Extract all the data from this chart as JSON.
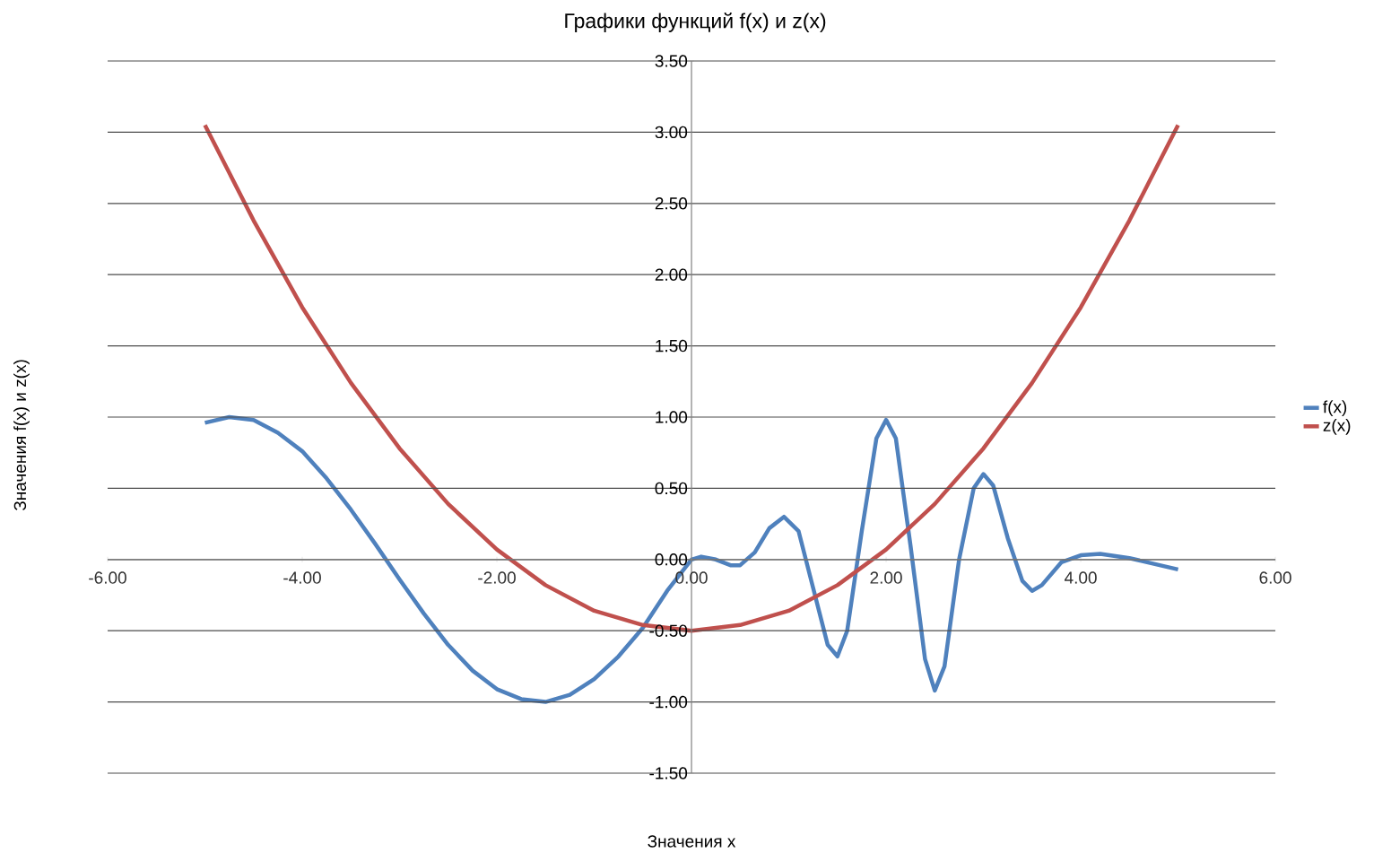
{
  "chart_data": {
    "type": "line",
    "title": "Графики функций f(x) и z(x)",
    "xlabel": "Значения x",
    "ylabel": "Значения f(x) и z(x)",
    "series": [
      {
        "name": "f(x)",
        "color": "#4f81bd",
        "x": [
          -5,
          -4.75,
          -4.5,
          -4.25,
          -4,
          -3.75,
          -3.5,
          -3.25,
          -3,
          -2.75,
          -2.5,
          -2.25,
          -2,
          -1.75,
          -1.5,
          -1.25,
          -1,
          -0.75,
          -0.5,
          -0.25,
          0,
          0.1,
          0.25,
          0.4,
          0.5,
          0.65,
          0.8,
          0.95,
          1.1,
          1.25,
          1.4,
          1.5,
          1.6,
          1.75,
          1.9,
          2.0,
          2.1,
          2.25,
          2.4,
          2.5,
          2.6,
          2.75,
          2.9,
          3.0,
          3.1,
          3.25,
          3.4,
          3.5,
          3.6,
          3.8,
          4.0,
          4.2,
          4.5,
          4.75,
          5
        ],
        "values": [
          0.96,
          1.0,
          0.98,
          0.89,
          0.76,
          0.57,
          0.35,
          0.11,
          -0.14,
          -0.38,
          -0.6,
          -0.78,
          -0.91,
          -0.98,
          -1.0,
          -0.95,
          -0.84,
          -0.68,
          -0.48,
          -0.22,
          0.0,
          0.02,
          0.0,
          -0.04,
          -0.04,
          0.05,
          0.22,
          0.3,
          0.2,
          -0.2,
          -0.6,
          -0.68,
          -0.5,
          0.2,
          0.85,
          0.98,
          0.85,
          0.1,
          -0.7,
          -0.92,
          -0.75,
          0.0,
          0.5,
          0.6,
          0.52,
          0.15,
          -0.15,
          -0.22,
          -0.18,
          -0.02,
          0.03,
          0.04,
          0.01,
          -0.03,
          -0.07
        ]
      },
      {
        "name": "z(x)",
        "color": "#c0504d",
        "x": [
          -5,
          -4.5,
          -4,
          -3.5,
          -3,
          -2.5,
          -2,
          -1.5,
          -1,
          -0.5,
          0,
          0.5,
          1,
          1.5,
          2,
          2.5,
          3,
          3.5,
          4,
          4.5,
          5
        ],
        "values": [
          3.05,
          2.38,
          1.77,
          1.24,
          0.78,
          0.39,
          0.07,
          -0.18,
          -0.36,
          -0.46,
          -0.5,
          -0.46,
          -0.36,
          -0.18,
          0.07,
          0.39,
          0.78,
          1.24,
          1.77,
          2.38,
          3.05
        ]
      }
    ],
    "xlim": [
      -6,
      6
    ],
    "ylim": [
      -1.5,
      3.5
    ],
    "xticks": [
      {
        "value": -6,
        "label": "-6.00"
      },
      {
        "value": -4,
        "label": "-4.00"
      },
      {
        "value": -2,
        "label": "-2.00"
      },
      {
        "value": 0,
        "label": "0.00"
      },
      {
        "value": 2,
        "label": "2.00"
      },
      {
        "value": 4,
        "label": "4.00"
      },
      {
        "value": 6,
        "label": "6.00"
      }
    ],
    "yticks": [
      {
        "value": -1.5,
        "label": "-1.50"
      },
      {
        "value": -1,
        "label": "-1.00"
      },
      {
        "value": -0.5,
        "label": "-0.50"
      },
      {
        "value": 0,
        "label": "0.00"
      },
      {
        "value": 0.5,
        "label": "0.50"
      },
      {
        "value": 1,
        "label": "1.00"
      },
      {
        "value": 1.5,
        "label": "1.50"
      },
      {
        "value": 2,
        "label": "2.00"
      },
      {
        "value": 2.5,
        "label": "2.50"
      },
      {
        "value": 3,
        "label": "3.00"
      },
      {
        "value": 3.5,
        "label": "3.50"
      }
    ],
    "grid": "y",
    "legend": "right",
    "marker": "none",
    "line_style": "solid"
  }
}
